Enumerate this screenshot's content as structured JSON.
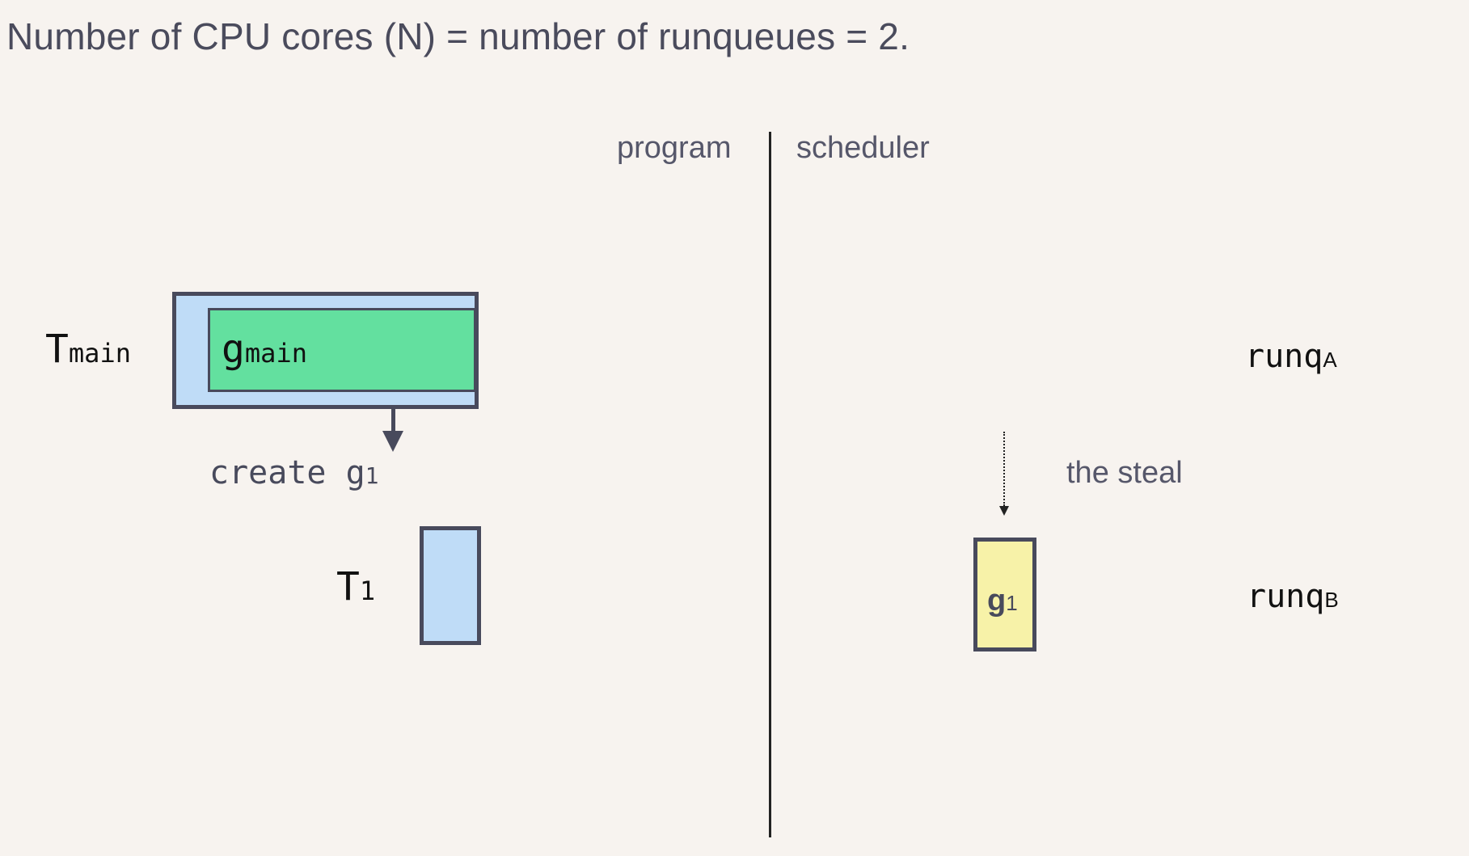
{
  "heading": "Number of CPU cores (N) = number of runqueues = 2.",
  "columns": {
    "program": "program",
    "scheduler": "scheduler"
  },
  "program": {
    "tmain": {
      "base": "T",
      "sub": "main"
    },
    "gmain": {
      "base": "g",
      "sub": "main"
    },
    "create": {
      "text": "create g",
      "sub": "1"
    },
    "t1": {
      "base": "T",
      "sub": "1"
    }
  },
  "scheduler": {
    "runq_a": {
      "base": "runq",
      "sub": "A"
    },
    "runq_b": {
      "base": "runq",
      "sub": "B"
    },
    "steal": "the steal",
    "g1": {
      "base": "g",
      "sub": "1"
    }
  },
  "colors": {
    "background": "#f7f3ef",
    "thread_fill": "#bfdcf7",
    "goroutine_main_fill": "#63e09f",
    "goroutine_queued_fill": "#f7f2a8",
    "outline": "#484a5c"
  }
}
